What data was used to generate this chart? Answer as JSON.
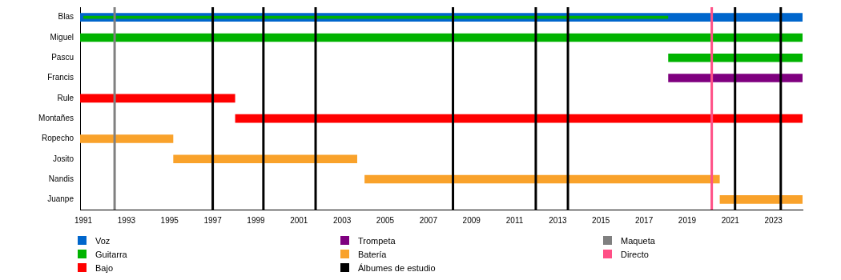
{
  "chart_data": {
    "type": "bar",
    "orientation": "horizontal",
    "categories": [
      "Blas",
      "Miguel",
      "Pascu",
      "Francis",
      "Rule",
      "Montañes",
      "Ropecho",
      "Josito",
      "Nandis",
      "Juanpe"
    ],
    "series": [
      {
        "name": "Voz",
        "color": "#0066cc",
        "base": [
          1990.85,
          null,
          null,
          null,
          null,
          null,
          null,
          null,
          null,
          null
        ],
        "values": [
          33.5,
          null,
          null,
          null,
          null,
          null,
          null,
          null,
          null,
          null
        ]
      },
      {
        "name": "Guitarra",
        "color": "#00b300",
        "base": [
          null,
          1990.85,
          2018.12,
          null,
          null,
          null,
          null,
          null,
          null,
          null
        ],
        "values": [
          null,
          33.5,
          6.23,
          null,
          null,
          null,
          null,
          null,
          null,
          null
        ]
      },
      {
        "name": "Bajo",
        "color": "#ff0000",
        "base": [
          null,
          null,
          null,
          null,
          1990.85,
          1998.04,
          null,
          null,
          null,
          null
        ],
        "values": [
          null,
          null,
          null,
          null,
          7.19,
          26.31,
          null,
          null,
          null,
          null
        ]
      },
      {
        "name": "Trompeta",
        "color": "#7f007f",
        "base": [
          null,
          null,
          null,
          2018.12,
          null,
          null,
          null,
          null,
          null,
          null
        ],
        "values": [
          null,
          null,
          null,
          6.23,
          null,
          null,
          null,
          null,
          null,
          null
        ]
      },
      {
        "name": "Batería",
        "color": "#f9a22b",
        "base": [
          null,
          null,
          null,
          null,
          null,
          null,
          1990.85,
          1995.17,
          2004.04,
          2020.51
        ],
        "values": [
          null,
          null,
          null,
          null,
          null,
          null,
          4.32,
          8.53,
          16.47,
          3.84
        ]
      },
      {
        "color": "#00b300",
        "base": [
          1991.0,
          null,
          null,
          null,
          null,
          null,
          null,
          null,
          null,
          null
        ],
        "values": [
          27.12,
          null,
          null,
          null,
          null,
          null,
          null,
          null,
          null,
          null
        ]
      }
    ],
    "xlim": [
      1990.85,
      2024.35
    ],
    "xticks": [
      1991,
      1993,
      1995,
      1997,
      1999,
      2001,
      2003,
      2005,
      2007,
      2009,
      2011,
      2013,
      2015,
      2017,
      2019,
      2021,
      2023
    ],
    "ref_lines": [
      {
        "axis": "x",
        "value": 1997.0,
        "label": "Álbumes de estudio",
        "color": "#000000"
      },
      {
        "axis": "x",
        "value": 1992.45,
        "label": "Maqueta",
        "color": "#808080"
      },
      {
        "axis": "x",
        "value": 2020.14,
        "label": "Directo",
        "color": "#ff4f86"
      },
      {
        "axis": "x",
        "value": 1999.35,
        "label": null,
        "color": "#000000"
      },
      {
        "axis": "x",
        "value": 2001.77,
        "label": null,
        "color": "#000000"
      },
      {
        "axis": "x",
        "value": 2008.14,
        "label": null,
        "color": "#000000"
      },
      {
        "axis": "x",
        "value": 2011.98,
        "label": null,
        "color": "#000000"
      },
      {
        "axis": "x",
        "value": 2013.47,
        "label": null,
        "color": "#000000"
      },
      {
        "axis": "x",
        "value": 2021.22,
        "label": null,
        "color": "#000000"
      },
      {
        "axis": "x",
        "value": 2023.34,
        "label": null,
        "color": "#000000"
      }
    ],
    "legend": "bottom left",
    "grid": false
  }
}
